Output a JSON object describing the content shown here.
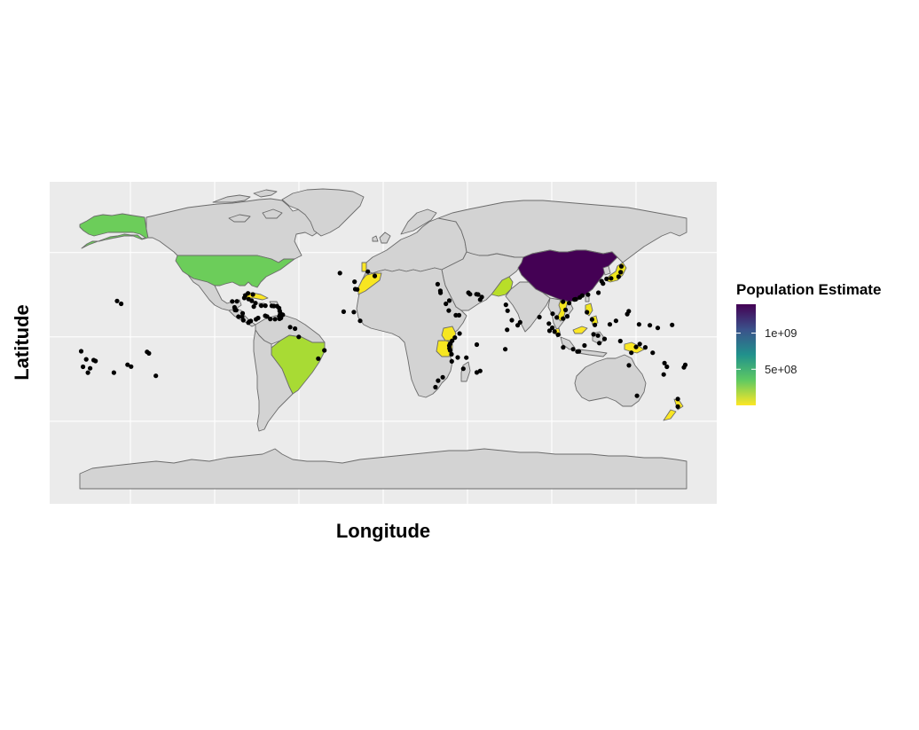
{
  "map": {
    "x_axis_title": "Longitude",
    "y_axis_title": "Latitude",
    "panel_background": "#ebebeb",
    "land_default_color": "#d3d3d3",
    "border_color": "#6b6b6b",
    "point_color": "#000000"
  },
  "legend": {
    "title": "Population Estimate",
    "position": "right",
    "palette": "viridis (reversed)",
    "gradient_colors": [
      "#fde725",
      "#5ec962",
      "#21918c",
      "#3b528b",
      "#440154"
    ],
    "ticks": [
      "1e+09",
      "5e+08"
    ],
    "range": [
      0,
      1400000000
    ]
  },
  "highlighted_countries": [
    {
      "name": "China",
      "color": "#440154"
    },
    {
      "name": "United States",
      "color": "#6ccd5a"
    },
    {
      "name": "Brazil",
      "color": "#a8db34"
    },
    {
      "name": "Pakistan",
      "color": "#b8de29"
    },
    {
      "name": "Japan",
      "color": "#efe51c"
    },
    {
      "name": "Philippines",
      "color": "#f1e51d"
    },
    {
      "name": "Vietnam",
      "color": "#f4e61e"
    },
    {
      "name": "Tanzania",
      "color": "#f6e620"
    },
    {
      "name": "Kenya",
      "color": "#f6e620"
    },
    {
      "name": "Morocco",
      "color": "#f8e621"
    },
    {
      "name": "New Zealand",
      "color": "#fae622"
    },
    {
      "name": "Papua New Guinea",
      "color": "#fbe723"
    },
    {
      "name": "Cuba",
      "color": "#fbe723"
    },
    {
      "name": "Portugal",
      "color": "#fde725"
    },
    {
      "name": "Malaysia",
      "color": "#fde725"
    }
  ],
  "chart_data": {
    "type": "scatter",
    "xlim": [
      -180,
      180
    ],
    "ylim": [
      -90,
      84
    ],
    "x_breaks": [
      -150,
      -100,
      -50,
      0,
      50,
      100,
      150
    ],
    "y_breaks": [
      -50,
      0,
      50
    ],
    "grid": true,
    "points": [
      [
        -157.9,
        21.3
      ],
      [
        -155.5,
        19.6
      ],
      [
        -170.7,
        -14.3
      ],
      [
        -171.8,
        -13.8
      ],
      [
        -175.2,
        -21.2
      ],
      [
        -173.9,
        -18.6
      ],
      [
        -159.8,
        -21.2
      ],
      [
        -149.6,
        -17.6
      ],
      [
        -151.7,
        -16.5
      ],
      [
        -139.0,
        -9.8
      ],
      [
        -140.1,
        -8.9
      ],
      [
        -134.9,
        -23.1
      ],
      [
        -176.2,
        -13.3
      ],
      [
        -179.2,
        -8.5
      ],
      [
        -178.1,
        -17.7
      ],
      [
        -80.2,
        25.8
      ],
      [
        -81.8,
        24.6
      ],
      [
        -77.3,
        25.1
      ],
      [
        -76.8,
        18.0
      ],
      [
        -72.3,
        18.5
      ],
      [
        -69.9,
        18.5
      ],
      [
        -66.1,
        18.4
      ],
      [
        -64.9,
        18.3
      ],
      [
        -63.0,
        18.2
      ],
      [
        -61.8,
        17.1
      ],
      [
        -61.4,
        15.4
      ],
      [
        -61.0,
        14.0
      ],
      [
        -59.6,
        13.1
      ],
      [
        -61.2,
        13.2
      ],
      [
        -61.7,
        12.1
      ],
      [
        -61.5,
        10.7
      ],
      [
        -68.9,
        12.1
      ],
      [
        -70.0,
        12.5
      ],
      [
        -75.5,
        10.4
      ],
      [
        -79.5,
        9.0
      ],
      [
        -83.0,
        9.9
      ],
      [
        -85.9,
        12.0
      ],
      [
        -87.2,
        15.8
      ],
      [
        -88.2,
        17.5
      ],
      [
        -86.8,
        21.1
      ],
      [
        -89.6,
        21.0
      ],
      [
        -82.4,
        23.1
      ],
      [
        -79.9,
        22.4
      ],
      [
        -78.0,
        21.4
      ],
      [
        -75.8,
        20.0
      ],
      [
        -87.9,
        15.9
      ],
      [
        -83.4,
        14.0
      ],
      [
        -83.7,
        11.9
      ],
      [
        -80.0,
        8.4
      ],
      [
        -78.6,
        9.4
      ],
      [
        -74.2,
        11.2
      ],
      [
        -67.0,
        10.6
      ],
      [
        -64.2,
        10.5
      ],
      [
        -60.7,
        11.2
      ],
      [
        -55.2,
        5.8
      ],
      [
        -52.3,
        4.9
      ],
      [
        -50.1,
        0.0
      ],
      [
        -38.5,
        -12.9
      ],
      [
        -34.9,
        -8.0
      ],
      [
        -16.6,
        28.3
      ],
      [
        -15.4,
        28.1
      ],
      [
        -17.0,
        32.7
      ],
      [
        -25.7,
        37.8
      ],
      [
        -23.5,
        14.9
      ],
      [
        -17.4,
        14.7
      ],
      [
        -13.7,
        9.5
      ],
      [
        -5.0,
        36.1
      ],
      [
        -9.1,
        38.7
      ],
      [
        32.3,
        31.2
      ],
      [
        33.9,
        27.3
      ],
      [
        34.0,
        26.1
      ],
      [
        37.2,
        19.6
      ],
      [
        39.2,
        21.5
      ],
      [
        38.9,
        15.6
      ],
      [
        43.1,
        12.8
      ],
      [
        45.0,
        12.8
      ],
      [
        51.5,
        25.3
      ],
      [
        50.6,
        26.2
      ],
      [
        55.3,
        25.3
      ],
      [
        56.3,
        25.1
      ],
      [
        58.5,
        23.6
      ],
      [
        57.5,
        22.1
      ],
      [
        45.3,
        2.0
      ],
      [
        42.5,
        -0.4
      ],
      [
        40.9,
        -2.3
      ],
      [
        39.7,
        -4.1
      ],
      [
        39.3,
        -6.8
      ],
      [
        39.7,
        -8.0
      ],
      [
        40.5,
        -10.3
      ],
      [
        40.7,
        -14.5
      ],
      [
        39.2,
        -5.2
      ],
      [
        55.5,
        -4.6
      ],
      [
        57.5,
        -20.2
      ],
      [
        55.5,
        -21.1
      ],
      [
        47.5,
        -18.9
      ],
      [
        49.3,
        -12.3
      ],
      [
        44.2,
        -12.2
      ],
      [
        32.6,
        -25.9
      ],
      [
        35.3,
        -23.9
      ],
      [
        31.0,
        -29.8
      ],
      [
        73.5,
        4.2
      ],
      [
        72.4,
        -7.3
      ],
      [
        72.8,
        19.0
      ],
      [
        73.8,
        15.5
      ],
      [
        76.3,
        9.9
      ],
      [
        79.8,
        6.9
      ],
      [
        81.2,
        8.6
      ],
      [
        92.7,
        11.7
      ],
      [
        98.3,
        7.9
      ],
      [
        100.5,
        13.7
      ],
      [
        103.0,
        11.5
      ],
      [
        106.7,
        10.8
      ],
      [
        109.2,
        12.2
      ],
      [
        108.2,
        16.0
      ],
      [
        106.7,
        20.8
      ],
      [
        110.3,
        20.0
      ],
      [
        113.5,
        22.2
      ],
      [
        114.2,
        22.3
      ],
      [
        116.7,
        23.4
      ],
      [
        118.1,
        24.5
      ],
      [
        120.9,
        14.6
      ],
      [
        123.9,
        10.3
      ],
      [
        125.6,
        7.1
      ],
      [
        121.5,
        25.0
      ],
      [
        127.7,
        26.2
      ],
      [
        129.6,
        33.0
      ],
      [
        130.4,
        31.6
      ],
      [
        132.5,
        34.4
      ],
      [
        135.2,
        34.7
      ],
      [
        139.7,
        35.7
      ],
      [
        140.9,
        38.3
      ],
      [
        141.3,
        41.8
      ],
      [
        144.8,
        13.5
      ],
      [
        145.7,
        15.2
      ],
      [
        134.5,
        7.4
      ],
      [
        138.1,
        9.5
      ],
      [
        151.8,
        7.4
      ],
      [
        158.2,
        6.9
      ],
      [
        162.9,
        5.3
      ],
      [
        171.4,
        7.1
      ],
      [
        103.8,
        1.3
      ],
      [
        101.7,
        3.1
      ],
      [
        100.3,
        5.4
      ],
      [
        98.7,
        3.6
      ],
      [
        106.8,
        -6.2
      ],
      [
        112.7,
        -7.3
      ],
      [
        115.2,
        -8.7
      ],
      [
        116.1,
        -8.6
      ],
      [
        119.4,
        -5.1
      ],
      [
        124.8,
        1.5
      ],
      [
        127.4,
        0.8
      ],
      [
        128.2,
        -3.7
      ],
      [
        131.3,
        -1.2
      ],
      [
        140.7,
        -2.5
      ],
      [
        147.2,
        -9.4
      ],
      [
        150.0,
        -6.0
      ],
      [
        152.2,
        -4.2
      ],
      [
        155.5,
        -6.2
      ],
      [
        159.9,
        -9.4
      ],
      [
        166.9,
        -15.5
      ],
      [
        168.3,
        -17.7
      ],
      [
        178.4,
        -18.1
      ],
      [
        179.2,
        -16.6
      ],
      [
        174.8,
        -41.3
      ],
      [
        174.8,
        -36.8
      ],
      [
        166.4,
        -22.3
      ],
      [
        150.6,
        -34.9
      ],
      [
        145.8,
        -16.9
      ]
    ]
  }
}
